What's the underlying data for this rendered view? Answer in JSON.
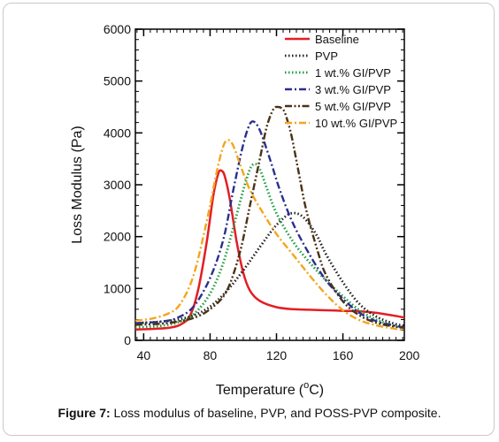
{
  "caption": {
    "label": "Figure 7:",
    "text": " Loss modulus of baseline, PVP, and POSS-PVP composite."
  },
  "chart_data": {
    "type": "line",
    "title": "",
    "xlabel": "Temperature",
    "xlabel_unit": "C",
    "xlabel_sup": "o",
    "ylabel": "Loss Modulus (Pa)",
    "xlim": [
      35,
      197
    ],
    "ylim": [
      0,
      6000
    ],
    "xticks": [
      40,
      80,
      120,
      160,
      200
    ],
    "yticks": [
      0,
      1000,
      2000,
      3000,
      4000,
      5000,
      6000
    ],
    "grid": false,
    "legend_position": "top-right",
    "series": [
      {
        "name": "Baseline",
        "color": "#e31e24",
        "dash": "solid",
        "x": [
          35,
          45,
          55,
          62,
          68,
          73,
          78,
          82,
          85,
          87,
          89,
          92,
          96,
          100,
          104,
          110,
          120,
          130,
          140,
          150,
          160,
          170,
          180,
          190,
          197
        ],
        "y": [
          210,
          220,
          240,
          300,
          480,
          1000,
          1900,
          2800,
          3220,
          3270,
          3150,
          2700,
          1900,
          1300,
          960,
          760,
          640,
          600,
          590,
          580,
          570,
          560,
          530,
          480,
          440
        ]
      },
      {
        "name": "PVP",
        "color": "#222222",
        "dash": "dotted",
        "x": [
          35,
          50,
          60,
          70,
          80,
          90,
          100,
          110,
          118,
          124,
          128,
          132,
          136,
          140,
          145,
          150,
          160,
          170,
          180,
          190,
          197
        ],
        "y": [
          330,
          360,
          400,
          480,
          650,
          950,
          1350,
          1800,
          2150,
          2350,
          2440,
          2450,
          2380,
          2230,
          1980,
          1650,
          1120,
          700,
          460,
          330,
          280
        ]
      },
      {
        "name": "1 wt.% GI/PVP",
        "color": "#1e9b3c",
        "dash": "dotted",
        "x": [
          35,
          50,
          60,
          70,
          80,
          88,
          95,
          100,
          104,
          107,
          110,
          114,
          120,
          130,
          140,
          150,
          160,
          170,
          180,
          190,
          197
        ],
        "y": [
          250,
          280,
          340,
          500,
          900,
          1500,
          2300,
          2900,
          3300,
          3400,
          3300,
          2950,
          2450,
          1900,
          1500,
          1150,
          850,
          580,
          400,
          290,
          240
        ]
      },
      {
        "name": "3 wt.% GI/PVP",
        "color": "#2a2f8f",
        "dash": "dashdot",
        "x": [
          35,
          50,
          60,
          70,
          80,
          88,
          94,
          99,
          103,
          106,
          110,
          116,
          122,
          130,
          140,
          150,
          160,
          170,
          180,
          190,
          197
        ],
        "y": [
          330,
          360,
          430,
          650,
          1200,
          1950,
          2900,
          3650,
          4100,
          4220,
          4050,
          3500,
          2900,
          2250,
          1650,
          1150,
          800,
          530,
          370,
          290,
          250
        ]
      },
      {
        "name": "5 wt.% GI/PVP",
        "color": "#4a3216",
        "dash": "dashdotdot",
        "x": [
          35,
          50,
          60,
          70,
          80,
          90,
          98,
          104,
          110,
          114,
          118,
          121,
          124,
          126,
          129,
          133,
          138,
          145,
          150,
          160,
          170,
          180,
          190,
          197
        ],
        "y": [
          300,
          320,
          360,
          430,
          600,
          950,
          1700,
          2600,
          3500,
          4100,
          4450,
          4500,
          4450,
          4300,
          3950,
          3300,
          2500,
          1700,
          1250,
          750,
          480,
          340,
          270,
          240
        ]
      },
      {
        "name": "10 wt.% GI/PVP",
        "color": "#f4a51c",
        "dash": "dashdot",
        "x": [
          35,
          45,
          55,
          62,
          70,
          78,
          84,
          88,
          91,
          94,
          98,
          104,
          112,
          120,
          130,
          140,
          150,
          160,
          170,
          180,
          190,
          197
        ],
        "y": [
          380,
          420,
          520,
          700,
          1250,
          2300,
          3250,
          3750,
          3860,
          3750,
          3400,
          2900,
          2450,
          2050,
          1650,
          1250,
          880,
          580,
          390,
          290,
          230,
          200
        ]
      }
    ]
  }
}
